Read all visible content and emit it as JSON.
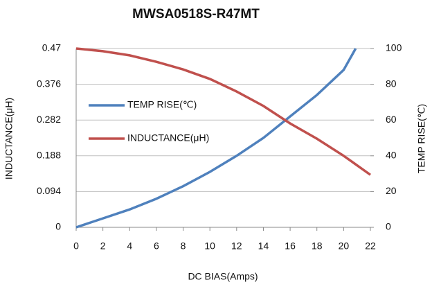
{
  "chart_data": {
    "type": "line",
    "title": "MWSA0518S-R47MT",
    "xlabel": "DC  BIAS(Amps)",
    "ylabel": "INDUCTANCE(μH)",
    "y2label": "TEMP RISE(℃)",
    "xlim": [
      0,
      22
    ],
    "xticks": [
      0,
      2,
      4,
      6,
      8,
      10,
      12,
      14,
      16,
      18,
      20,
      22
    ],
    "ylim": [
      0,
      0.47
    ],
    "yticks": [
      0,
      0.094,
      0.188,
      0.282,
      0.376,
      0.47
    ],
    "y2lim": [
      0,
      100
    ],
    "y2ticks": [
      0,
      20,
      40,
      60,
      80,
      100
    ],
    "grid": true,
    "legend": "upper left",
    "series": [
      {
        "name": "TEMP RISE(℃)",
        "color": "#4f81bd",
        "axis": "y2",
        "x": [
          0,
          2,
          4,
          6,
          8,
          10,
          12,
          14,
          16,
          18,
          20,
          20.9
        ],
        "values": [
          0,
          5,
          10,
          16,
          23,
          31,
          40,
          50,
          62,
          74,
          88,
          100
        ]
      },
      {
        "name": "INDUCTANCE(μH)",
        "color": "#c0504d",
        "axis": "y",
        "x": [
          0,
          2,
          4,
          6,
          8,
          10,
          12,
          14,
          16,
          18,
          20,
          22
        ],
        "values": [
          0.47,
          0.463,
          0.452,
          0.435,
          0.415,
          0.39,
          0.357,
          0.319,
          0.273,
          0.233,
          0.188,
          0.138
        ]
      }
    ]
  }
}
